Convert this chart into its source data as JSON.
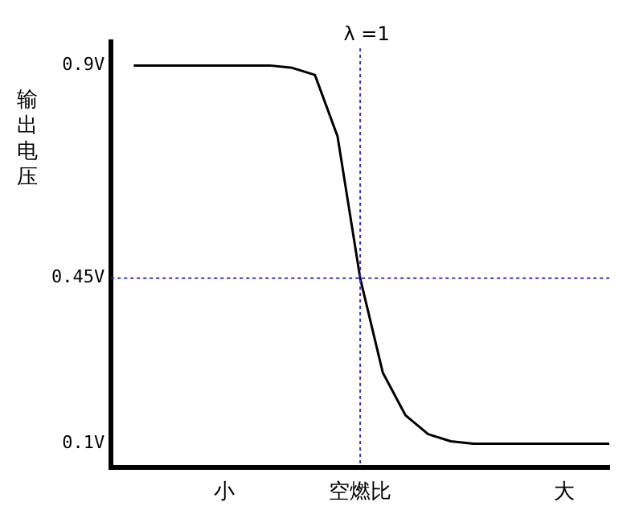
{
  "chart_data": {
    "type": "line",
    "ylabel": "输出电压",
    "categories": [
      null,
      null,
      null,
      null,
      null,
      "小",
      null,
      null,
      null,
      null,
      null,
      "空燃比",
      null,
      null,
      null,
      null,
      null,
      null,
      null,
      null,
      "大",
      null,
      null
    ],
    "series": [
      {
        "color": "#000000",
        "values": [
          null,
          0.9,
          0.9,
          0.9,
          0.9,
          0.9,
          0.9,
          0.9,
          0.895,
          0.88,
          0.75,
          0.45,
          0.25,
          0.16,
          0.12,
          0.105,
          0.1,
          0.1,
          0.1,
          0.1,
          0.1,
          0.1,
          0.1
        ]
      }
    ],
    "ylim": [
      0.05,
      0.95
    ],
    "yticks": [
      {
        "value": 0.1,
        "label": "0.1V"
      },
      {
        "value": 0.45,
        "label": "0.45V"
      },
      {
        "value": 0.9,
        "label": "0.9V"
      }
    ],
    "ref_lines": [
      {
        "axis": "x",
        "value": "空燃比",
        "label": "λ =1",
        "color": "#3333cc",
        "line_style": "dotted"
      },
      {
        "axis": "y",
        "value": 0.45,
        "color": "#3333cc",
        "line_style": "dotted"
      }
    ],
    "grid": false,
    "legend": false,
    "marker": "none",
    "line_style": "solid"
  }
}
